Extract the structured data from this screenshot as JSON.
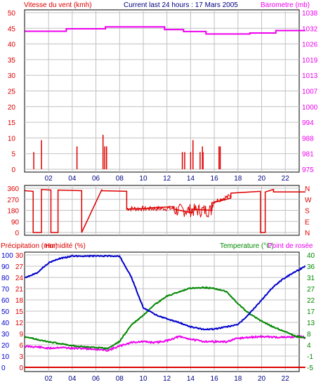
{
  "header": {
    "wind_speed_label": "Vitesse du vent (kmh)",
    "current_label": "Current last 24 hours : 17 Mars 2005",
    "barometer_label": "Barometre (mb)"
  },
  "colors": {
    "wind": "#dd0000",
    "pressure": "#ee00ee",
    "humidity": "#0000cc",
    "temperature": "#008800",
    "dewpoint": "#ee00ee",
    "precip": "#dd0000",
    "precip_axis": "#0000cc"
  },
  "chart_data": [
    {
      "id": "wind-pressure",
      "type": "line",
      "title": "",
      "x_ticks": [
        "02",
        "04",
        "06",
        "08",
        "10",
        "12",
        "14",
        "16",
        "18",
        "20",
        "22"
      ],
      "left_axis": {
        "label": "Vitesse du vent (kmh)",
        "ticks": [
          "0",
          "5",
          "10",
          "15",
          "20",
          "25",
          "30",
          "35",
          "40",
          "45",
          "50"
        ],
        "ylim": [
          0,
          50
        ]
      },
      "right_axis": {
        "label": "Barometre (mb)",
        "ticks": [
          "975",
          "981",
          "988",
          "994",
          "1000",
          "1007",
          "1013",
          "1019",
          "1026",
          "1032",
          "1038"
        ],
        "ylim": [
          975,
          1038
        ]
      },
      "series": [
        {
          "name": "Barometre (mb)",
          "axis": "right",
          "type": "line",
          "x": [
            0,
            3.5,
            3.5,
            6.8,
            6.8,
            11.8,
            11.8,
            13.4,
            13.4,
            15.3,
            15.3,
            19,
            19,
            21.2,
            21.2,
            23.7
          ],
          "values": [
            1030.5,
            1030.5,
            1031.5,
            1031.5,
            1032.3,
            1032.3,
            1031.2,
            1031.2,
            1030.4,
            1030.4,
            1029.4,
            1029.4,
            1029.8,
            1029.8,
            1030.8,
            1030.8
          ]
        },
        {
          "name": "Vitesse du vent (kmh)",
          "axis": "left",
          "type": "bar",
          "x": [
            0.75,
            1.4,
            4.4,
            6.6,
            6.75,
            6.9,
            13.3,
            13.5,
            14,
            14.2,
            14.8,
            15,
            15.05,
            16.4,
            16.5
          ],
          "values": [
            5.5,
            9.3,
            7.3,
            11,
            7.3,
            7.3,
            5.5,
            5.5,
            5.5,
            9.3,
            5.5,
            7.3,
            5.5,
            7.3,
            7.3
          ]
        }
      ]
    },
    {
      "id": "wind-direction",
      "type": "line",
      "title": "",
      "y_ticks": [
        "360",
        "270",
        "180",
        "90",
        "0"
      ],
      "right_ticks": [
        "N",
        "W",
        "S",
        "E",
        "N"
      ],
      "ylim": [
        0,
        360
      ],
      "series": [
        {
          "name": "Direction",
          "x": [
            0,
            0.7,
            0.7,
            1.4,
            1.4,
            2.2,
            2.2,
            2.8,
            2.8,
            4.8,
            4.8,
            6.5,
            6.5,
            8.6,
            8.6,
            10.5,
            10.5,
            12.6,
            12.6,
            14.1,
            14.1,
            15.8,
            15.8,
            17.4,
            17.4,
            19.9,
            19.9,
            20.3,
            20.3,
            21.0,
            21.0,
            23.7
          ],
          "values": [
            340,
            335,
            0,
            0,
            350,
            345,
            0,
            0,
            345,
            340,
            0,
            350,
            340,
            335,
            190,
            195,
            200,
            210,
            190,
            160,
            190,
            180,
            240,
            280,
            320,
            335,
            0,
            0,
            330,
            350,
            330,
            330
          ]
        }
      ]
    },
    {
      "id": "temp-humidity",
      "type": "line",
      "title": "",
      "left_axis_1": {
        "label": "Précipitation (mm)",
        "ticks": [
          "0",
          "3",
          "6",
          "9",
          "12",
          "15",
          "18",
          "21",
          "24",
          "27",
          "30"
        ],
        "ylim": [
          0,
          30
        ]
      },
      "left_axis_2": {
        "label": "Humidité (%)",
        "ticks": [
          "0",
          "10",
          "20",
          "30",
          "40",
          "50",
          "60",
          "70",
          "80",
          "90",
          "100"
        ],
        "ylim": [
          0,
          100
        ]
      },
      "right_axis": {
        "label": "Temperature (°C) Point de rosée",
        "ticks": [
          "-5",
          "-1",
          "4",
          "8",
          "13",
          "17",
          "22",
          "27",
          "31",
          "36",
          "40"
        ],
        "ylim": [
          -5,
          40
        ]
      },
      "legend": [
        "Précipitation (mm)",
        "Humidité (%)",
        "Temperature (°C)",
        "Point de rosée"
      ],
      "x_ticks": [
        "02",
        "04",
        "06",
        "08",
        "10",
        "12",
        "14",
        "16",
        "18",
        "20",
        "22"
      ],
      "series": [
        {
          "name": "Humidité (%)",
          "axis": "left2",
          "x": [
            0,
            1,
            2,
            3,
            4,
            5,
            6,
            7,
            8,
            9,
            10,
            11,
            12,
            13,
            14,
            15,
            16,
            17,
            18,
            19,
            20,
            21,
            22,
            23,
            23.7
          ],
          "values": [
            80,
            84,
            93,
            97,
            99,
            99,
            99,
            99,
            99,
            80,
            53,
            47,
            43,
            40,
            36,
            34,
            34,
            36,
            38,
            48,
            60,
            72,
            80,
            86,
            90
          ]
        },
        {
          "name": "Temperature (°C)",
          "axis": "right",
          "x": [
            0,
            1,
            2,
            3,
            4,
            5,
            6,
            7,
            8,
            9,
            10,
            11,
            12,
            13,
            14,
            15,
            16,
            17,
            18,
            19,
            20,
            21,
            22,
            23,
            23.7
          ],
          "values": [
            7.3,
            6.2,
            5.2,
            4.5,
            3.7,
            3.2,
            3.0,
            2.5,
            5.4,
            12.0,
            15.8,
            20.2,
            23.5,
            25.2,
            26.7,
            27.0,
            26.6,
            25.4,
            20.5,
            16.3,
            13.5,
            11.1,
            9.2,
            7.3,
            6.8
          ]
        },
        {
          "name": "Point de rosée",
          "axis": "right",
          "x": [
            0,
            1,
            2,
            3,
            4,
            5,
            6,
            7,
            8,
            9,
            10,
            11,
            12,
            13,
            14,
            15,
            16,
            17,
            18,
            19,
            20,
            21,
            22,
            23,
            23.7
          ],
          "values": [
            3.4,
            3.2,
            2.6,
            3.0,
            2.6,
            2.6,
            2.2,
            1.8,
            3.5,
            5.0,
            5.3,
            4.9,
            5.7,
            7.3,
            6.3,
            5.4,
            5.3,
            5.2,
            6.6,
            7.0,
            7.3,
            7.1,
            7.0,
            7.3,
            7.0
          ]
        },
        {
          "name": "Précipitation (mm)",
          "axis": "left1",
          "x": [
            0,
            23.7
          ],
          "values": [
            0,
            0
          ]
        }
      ]
    }
  ]
}
